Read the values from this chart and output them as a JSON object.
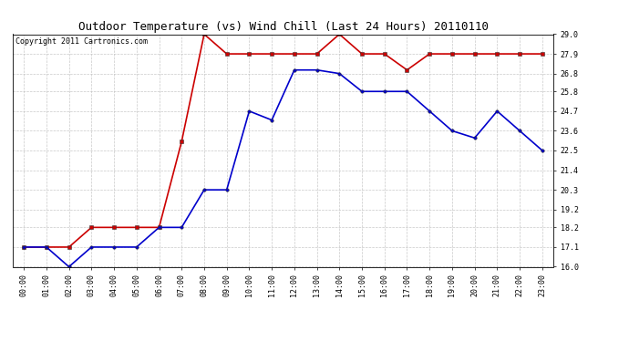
{
  "title": "Outdoor Temperature (vs) Wind Chill (Last 24 Hours) 20110110",
  "copyright_text": "Copyright 2011 Cartronics.com",
  "x_labels": [
    "00:00",
    "01:00",
    "02:00",
    "03:00",
    "04:00",
    "05:00",
    "06:00",
    "07:00",
    "08:00",
    "09:00",
    "10:00",
    "11:00",
    "12:00",
    "13:00",
    "14:00",
    "15:00",
    "16:00",
    "17:00",
    "18:00",
    "19:00",
    "20:00",
    "21:00",
    "22:00",
    "23:00"
  ],
  "temp_data": [
    17.1,
    17.1,
    17.1,
    18.2,
    18.2,
    18.2,
    18.2,
    23.0,
    29.0,
    27.9,
    27.9,
    27.9,
    27.9,
    27.9,
    29.0,
    27.9,
    27.9,
    27.0,
    27.9,
    27.9,
    27.9,
    27.9,
    27.9,
    27.9
  ],
  "windchill_data": [
    17.1,
    17.1,
    16.0,
    17.1,
    17.1,
    17.1,
    18.2,
    18.2,
    20.3,
    20.3,
    24.7,
    24.2,
    27.0,
    27.0,
    26.8,
    25.8,
    25.8,
    25.8,
    24.7,
    23.6,
    23.2,
    24.7,
    23.6,
    22.5
  ],
  "temp_color": "#cc0000",
  "windchill_color": "#0000cc",
  "ylim_min": 16.0,
  "ylim_max": 29.0,
  "ytick_values": [
    16.0,
    17.1,
    18.2,
    19.2,
    20.3,
    21.4,
    22.5,
    23.6,
    24.7,
    25.8,
    26.8,
    27.9,
    29.0
  ],
  "ytick_labels": [
    "16.0",
    "17.1",
    "18.2",
    "19.2",
    "20.3",
    "21.4",
    "22.5",
    "23.6",
    "24.7",
    "25.8",
    "26.8",
    "27.9",
    "29.0"
  ],
  "background_color": "#ffffff",
  "grid_color": "#bbbbbb",
  "title_fontsize": 9,
  "tick_fontsize": 6,
  "copyright_fontsize": 6,
  "figwidth": 6.9,
  "figheight": 3.75,
  "dpi": 100
}
